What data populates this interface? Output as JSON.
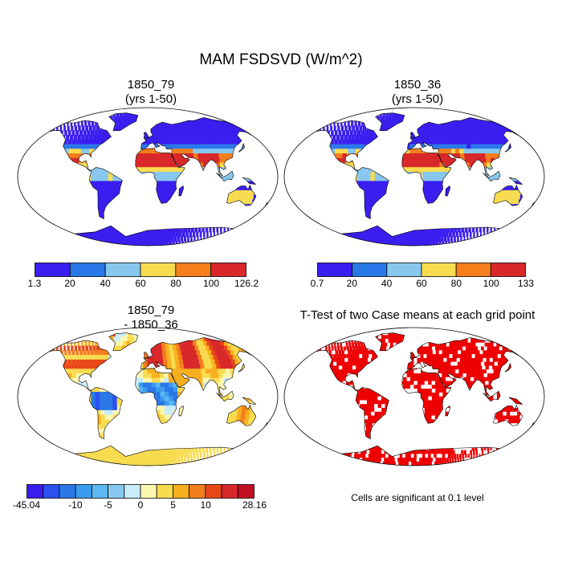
{
  "figure": {
    "title": "MAM FSDSVD (W/m^2)"
  },
  "panels": [
    {
      "title_line1": "1850_79",
      "title_line2": "(yrs 1-50)",
      "palette": [
        "#3a1ef0",
        "#2a78e8",
        "#88c8ef",
        "#f8dc50",
        "#f47e1c",
        "#d8282a"
      ],
      "colorbar_labels": [
        "1.3",
        "20",
        "40",
        "60",
        "80",
        "100",
        "126.2"
      ]
    },
    {
      "title_line1": "1850_36",
      "title_line2": "(yrs 1-50)",
      "palette": [
        "#3a1ef0",
        "#2a78e8",
        "#88c8ef",
        "#f8dc50",
        "#f47e1c",
        "#d8282a"
      ],
      "colorbar_labels": [
        "0.7",
        "20",
        "40",
        "60",
        "80",
        "100",
        "133"
      ]
    },
    {
      "title_line1": "1850_79",
      "title_line2": "- 1850_36",
      "palette": [
        "#3a1ef0",
        "#2a50f0",
        "#2a78e8",
        "#3a9cf0",
        "#5cb8f0",
        "#88c8ef",
        "#c8ecfa",
        "#fff6b0",
        "#f8dc50",
        "#f8b020",
        "#f47e1c",
        "#e84818",
        "#d8282a",
        "#c01020"
      ],
      "colorbar_labels": [
        "-45.04",
        "-10",
        "-5",
        "0",
        "5",
        "10",
        "28.16"
      ]
    },
    {
      "title_line1": "T-Test of two Case means at each grid point",
      "significance_color": "#ee0000",
      "footnote": "Cells are significant at 0.1 level"
    }
  ]
}
